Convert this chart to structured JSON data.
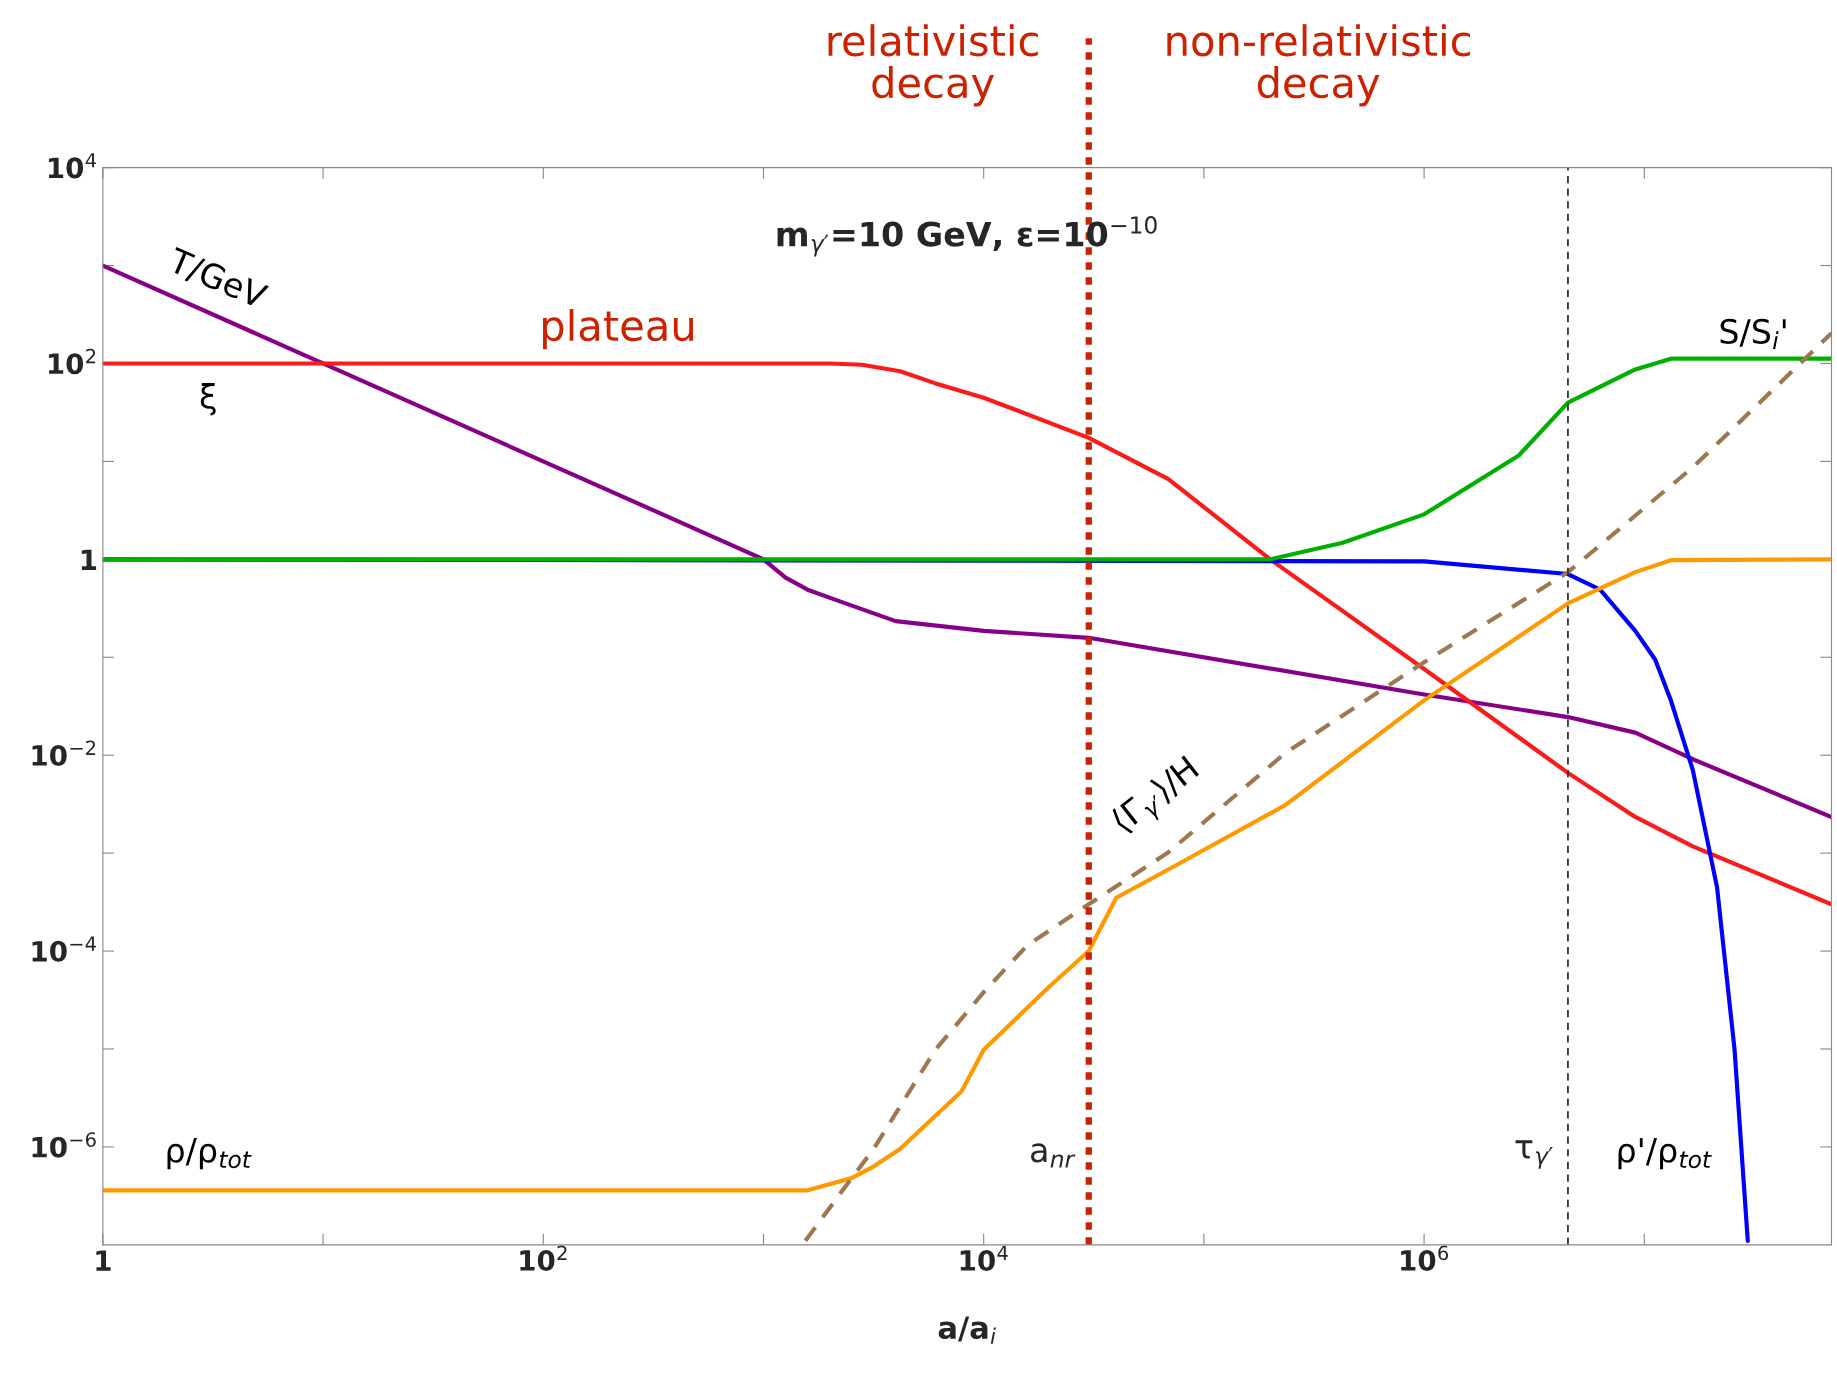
{
  "chart_data": {
    "type": "line",
    "title": "m$_{γ′}$=10 GeV, ε=10$^{−10}$",
    "xlabel": "a/a$_{i}$",
    "log": "xy",
    "xlim": [
      1,
      70800000
    ],
    "ylim": [
      1e-07,
      10000
    ],
    "xticks": [
      1,
      {
        "value": 10,
        "label": null
      },
      {
        "value": 100,
        "label": "10$^{2}$"
      },
      {
        "value": 1000,
        "label": null
      },
      {
        "value": 10000,
        "label": "10$^{4}$"
      },
      {
        "value": 100000,
        "label": null
      },
      {
        "value": 1000000,
        "label": "10$^{6}$"
      },
      {
        "value": 10000000,
        "label": null
      }
    ],
    "yticks": [
      {
        "value": 1e-06,
        "label": "10$^{−6}$"
      },
      {
        "value": 1e-05,
        "label": null
      },
      {
        "value": 0.0001,
        "label": "10$^{−4}$"
      },
      {
        "value": 0.001,
        "label": null
      },
      {
        "value": 0.01,
        "label": "10$^{−2}$"
      },
      {
        "value": 0.1,
        "label": null
      },
      1,
      {
        "value": 10,
        "label": null
      },
      {
        "value": 100,
        "label": "10$^{2}$"
      },
      {
        "value": 1000,
        "label": null
      },
      {
        "value": 10000,
        "label": "10$^{4}$"
      }
    ],
    "grid": false,
    "legend": false,
    "series": [
      {
        "color": "#880088",
        "x": [
          1,
          501,
          1000,
          1260,
          1585,
          2240,
          3981,
          10000,
          30000,
          1000000,
          4500000,
          9100000,
          16600000,
          70800000
        ],
        "values": [
          1000,
          2.0,
          1,
          0.65,
          0.49,
          0.37,
          0.234,
          0.186,
          0.158,
          0.0417,
          0.0245,
          0.017,
          0.0091,
          0.00234
        ]
      },
      {
        "color": "#ff1a1a",
        "x": [
          1,
          2000,
          2800,
          4170,
          6000,
          10000,
          30000,
          69000,
          200000,
          1000000,
          4500000,
          9100000,
          16600000,
          70800000
        ],
        "values": [
          100,
          100,
          97,
          83.2,
          63,
          44.7,
          17.4,
          6.6,
          1,
          0.0759,
          0.0066,
          0.00234,
          0.00117,
          0.0003
        ]
      },
      {
        "color": "#0000ff",
        "x": [
          1,
          1000000,
          4500000,
          6300000,
          9100000,
          11200000,
          13200000,
          16600000,
          21400000,
          25700000,
          29500000
        ],
        "values": [
          1,
          0.955,
          0.708,
          0.49,
          0.186,
          0.095,
          0.0363,
          0.00708,
          0.000447,
          9.8e-06,
          1.1e-07
        ]
      },
      {
        "color": "#00b000",
        "x": [
          1,
          200000,
          427000,
          1000000,
          2690000,
          4500000,
          9100000,
          13200000,
          70800000
        ],
        "values": [
          1,
          1,
          1.48,
          2.88,
          11.5,
          39.8,
          87,
          112,
          112
        ]
      },
      {
        "color": "#ff9900",
        "x": [
          1,
          1585,
          2512,
          3160,
          4170,
          7940,
          10000,
          20000,
          30000,
          40000,
          69000,
          234000,
          1000000,
          4500000,
          9100000,
          13200000,
          70800000
        ],
        "values": [
          3.6e-07,
          3.6e-07,
          4.8e-07,
          6.3e-07,
          9.5e-07,
          3.7e-06,
          9.8e-06,
          4.4e-05,
          0.0001,
          0.00035,
          0.00068,
          0.00309,
          0.0363,
          0.355,
          0.74,
          0.98,
          1
        ]
      },
      {
        "color": "#a07850",
        "line_style": "dashed",
        "x": [
          1550,
          2512,
          3160,
          6030,
          10000,
          15800,
          30000,
          69000,
          234000,
          1000000,
          4500000,
          16600000,
          70800000
        ],
        "values": [
          1.1e-07,
          4.8e-07,
          9.5e-07,
          9.8e-06,
          3.8e-05,
          0.000115,
          0.0003,
          0.00102,
          0.0105,
          0.089,
          0.74,
          8.7,
          204
        ]
      }
    ],
    "ref_lines": [
      {
        "axis": "x",
        "value": 30000,
        "label": "a$_{nr}$",
        "color": "#cc2200",
        "line_style": "dotted"
      },
      {
        "axis": "x",
        "value": 4500000,
        "label": "τ$_{γ′}$",
        "color": "#333333",
        "line_style": "dashed"
      }
    ],
    "annotations": [
      "T/GeV",
      "ξ",
      "plateau",
      "S/S$_{i}$'",
      "⟨Γ$_{γ′}$⟩/H",
      "ρ/ρ$_{tot}$",
      "ρ'/ρ$_{tot}$",
      "relativistic\ndecay",
      "non-relativistic\ndecay"
    ]
  }
}
